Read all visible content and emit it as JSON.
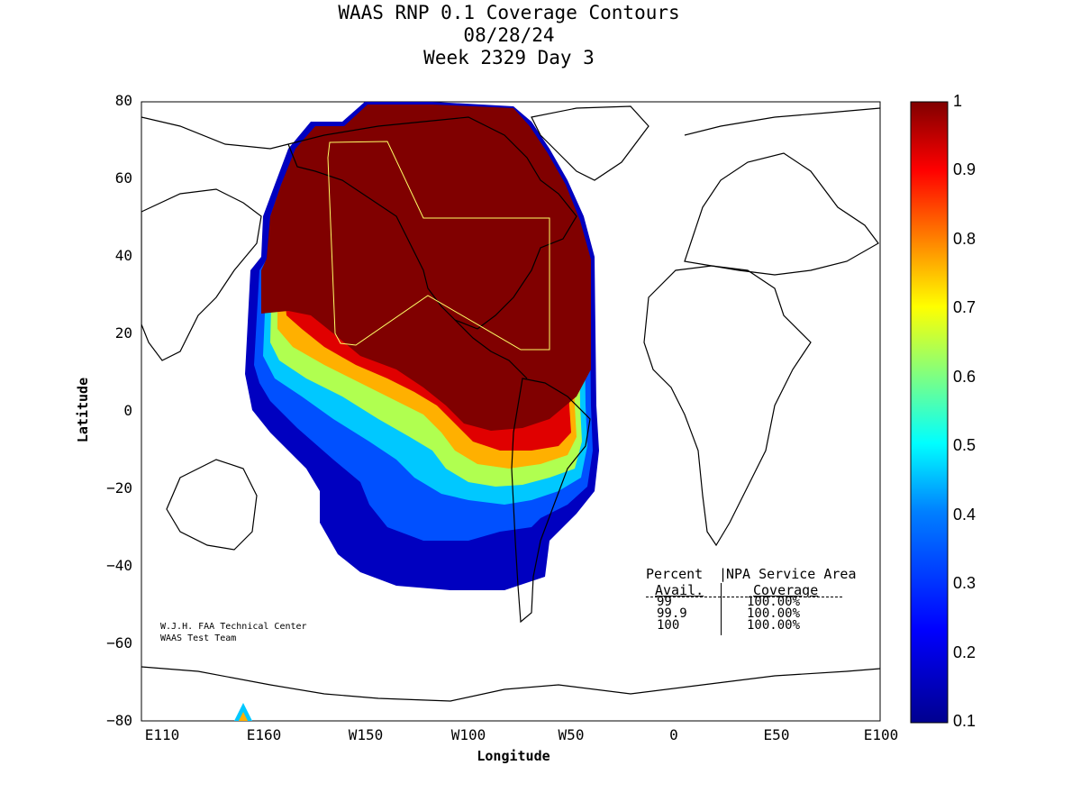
{
  "title": {
    "line1": "WAAS RNP 0.1 Coverage Contours",
    "line2": "08/28/24",
    "line3": "Week 2329 Day 3"
  },
  "axes": {
    "xlabel": "Longitude",
    "ylabel": "Latitude",
    "xticks": [
      "E110",
      "E160",
      "W150",
      "W100",
      "W50",
      "0",
      "E50",
      "E100"
    ],
    "yticks": [
      "80",
      "60",
      "40",
      "20",
      "0",
      "−20",
      "−40",
      "−60",
      "−80"
    ]
  },
  "colorbar": {
    "ticks": [
      "1",
      "0.9",
      "0.8",
      "0.7",
      "0.6",
      "0.5",
      "0.4",
      "0.3",
      "0.2",
      "0.1"
    ],
    "range": [
      0.1,
      1
    ]
  },
  "credit": {
    "line1": "W.J.H. FAA Technical Center",
    "line2": "WAAS Test Team"
  },
  "table": {
    "header1_col1": "Percent",
    "header1_col2": "NPA Service Area",
    "header2_col1": "Avail.",
    "header2_col2": "Coverage",
    "rows": [
      {
        "avail": "99",
        "coverage": "100.00%"
      },
      {
        "avail": "99.9",
        "coverage": "100.00%"
      },
      {
        "avail": "100",
        "coverage": "100.00%"
      }
    ]
  },
  "colors": {
    "high": "#800000",
    "mid": "#ffff00",
    "low": "#00008f"
  }
}
